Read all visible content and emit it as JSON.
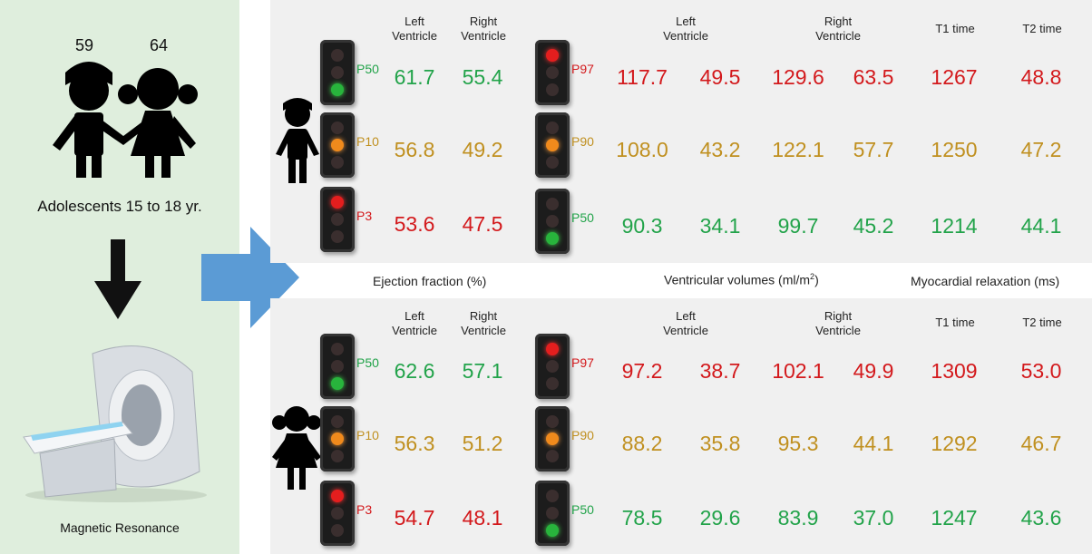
{
  "left_panel": {
    "boy_count": "59",
    "girl_count": "64",
    "group_label": "Adolescents 15 to 18 yr.",
    "device_label": "Magnetic Resonance"
  },
  "headers": {
    "left_ventricle": "Left\nVentricle",
    "right_ventricle": "Right\nVentricle",
    "t1": "T1 time",
    "t2": "T2 time"
  },
  "axis_labels": {
    "ejection_fraction": "Ejection fraction (%)",
    "volumes_prefix": "Ventricular volumes (ml/m",
    "volumes_sup": "2",
    "volumes_suffix": ")",
    "relaxation": "Myocardial relaxation (ms)"
  },
  "colors": {
    "green": "#22a34a",
    "amber": "#c09020",
    "red": "#d3191c",
    "arrow": "#5b9bd5"
  },
  "boys": {
    "ejection": [
      {
        "percentile": "P50",
        "level": "green",
        "lv": "61.7",
        "rv": "55.4"
      },
      {
        "percentile": "P10",
        "level": "amber",
        "lv": "56.8",
        "rv": "49.2"
      },
      {
        "percentile": "P3",
        "level": "red",
        "lv": "53.6",
        "rv": "47.5"
      }
    ],
    "volumes": [
      {
        "percentile": "P97",
        "level": "red",
        "lv1": "117.7",
        "lv2": "49.5",
        "rv1": "129.6",
        "rv2": "63.5",
        "t1": "1267",
        "t2": "48.8"
      },
      {
        "percentile": "P90",
        "level": "amber",
        "lv1": "108.0",
        "lv2": "43.2",
        "rv1": "122.1",
        "rv2": "57.7",
        "t1": "1250",
        "t2": "47.2"
      },
      {
        "percentile": "P50",
        "level": "green",
        "lv1": "90.3",
        "lv2": "34.1",
        "rv1": "99.7",
        "rv2": "45.2",
        "t1": "1214",
        "t2": "44.1"
      }
    ]
  },
  "girls": {
    "ejection": [
      {
        "percentile": "P50",
        "level": "green",
        "lv": "62.6",
        "rv": "57.1"
      },
      {
        "percentile": "P10",
        "level": "amber",
        "lv": "56.3",
        "rv": "51.2"
      },
      {
        "percentile": "P3",
        "level": "red",
        "lv": "54.7",
        "rv": "48.1"
      }
    ],
    "volumes": [
      {
        "percentile": "P97",
        "level": "red",
        "lv1": "97.2",
        "lv2": "38.7",
        "rv1": "102.1",
        "rv2": "49.9",
        "t1": "1309",
        "t2": "53.0"
      },
      {
        "percentile": "P90",
        "level": "amber",
        "lv1": "88.2",
        "lv2": "35.8",
        "rv1": "95.3",
        "rv2": "44.1",
        "t1": "1292",
        "t2": "46.7"
      },
      {
        "percentile": "P50",
        "level": "green",
        "lv1": "78.5",
        "lv2": "29.6",
        "rv1": "83.9",
        "rv2": "37.0",
        "t1": "1247",
        "t2": "43.6"
      }
    ]
  }
}
